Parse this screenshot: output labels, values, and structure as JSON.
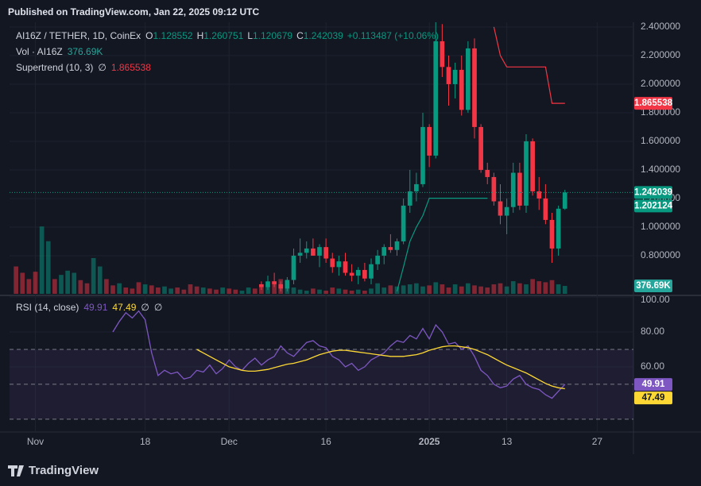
{
  "header": {
    "published": "Published on TradingView.com, Jan 22, 2025 09:12 UTC"
  },
  "footer": {
    "brand": "TradingView"
  },
  "chart_data": {
    "type": "candlestick",
    "title": "AI16Z / TETHER, 1D, CoinEx",
    "ohlc_names": [
      "O",
      "H",
      "L",
      "C"
    ],
    "change_label": "+0.113487 (+10.06%)",
    "up_color": "#089981",
    "down_color": "#f23645",
    "grid": true,
    "x": [
      "2024-10-29",
      "2024-10-30",
      "2024-10-31",
      "2024-11-01",
      "2024-11-02",
      "2024-11-03",
      "2024-11-04",
      "2024-11-05",
      "2024-11-06",
      "2024-11-07",
      "2024-11-08",
      "2024-11-09",
      "2024-11-10",
      "2024-11-11",
      "2024-11-12",
      "2024-11-13",
      "2024-11-14",
      "2024-11-15",
      "2024-11-16",
      "2024-11-17",
      "2024-11-18",
      "2024-11-19",
      "2024-11-20",
      "2024-11-21",
      "2024-11-22",
      "2024-11-23",
      "2024-11-24",
      "2024-11-25",
      "2024-11-26",
      "2024-11-27",
      "2024-11-28",
      "2024-11-29",
      "2024-11-30",
      "2024-12-01",
      "2024-12-02",
      "2024-12-03",
      "2024-12-04",
      "2024-12-05",
      "2024-12-06",
      "2024-12-07",
      "2024-12-08",
      "2024-12-09",
      "2024-12-10",
      "2024-12-11",
      "2024-12-12",
      "2024-12-13",
      "2024-12-14",
      "2024-12-15",
      "2024-12-16",
      "2024-12-17",
      "2024-12-18",
      "2024-12-19",
      "2024-12-20",
      "2024-12-21",
      "2024-12-22",
      "2024-12-23",
      "2024-12-24",
      "2024-12-25",
      "2024-12-26",
      "2024-12-27",
      "2024-12-28",
      "2024-12-29",
      "2024-12-30",
      "2024-12-31",
      "2025-01-01",
      "2025-01-02",
      "2025-01-03",
      "2025-01-04",
      "2025-01-05",
      "2025-01-06",
      "2025-01-07",
      "2025-01-08",
      "2025-01-09",
      "2025-01-10",
      "2025-01-11",
      "2025-01-12",
      "2025-01-13",
      "2025-01-14",
      "2025-01-15",
      "2025-01-16",
      "2025-01-17",
      "2025-01-18",
      "2025-01-19",
      "2025-01-20",
      "2025-01-21",
      "2025-01-22"
    ],
    "xlim": [
      "2024-10-28",
      "2025-02-01"
    ],
    "xticks": [
      {
        "value": "2024-11-01",
        "label": "Nov"
      },
      {
        "value": "2024-11-18",
        "label": "18"
      },
      {
        "value": "2024-12-01",
        "label": "Dec"
      },
      {
        "value": "2024-12-16",
        "label": "16"
      },
      {
        "value": "2025-01-01",
        "label": "2025"
      },
      {
        "value": "2025-01-13",
        "label": "13"
      },
      {
        "value": "2025-01-27",
        "label": "27"
      }
    ],
    "open": [
      null,
      null,
      null,
      null,
      null,
      null,
      null,
      null,
      null,
      null,
      null,
      null,
      null,
      null,
      null,
      null,
      null,
      null,
      null,
      null,
      null,
      null,
      null,
      null,
      null,
      null,
      null,
      null,
      null,
      null,
      null,
      null,
      null,
      null,
      null,
      null,
      null,
      null,
      0.6,
      0.58,
      0.62,
      0.6,
      0.57,
      0.63,
      0.8,
      0.82,
      0.85,
      0.8,
      0.86,
      0.78,
      0.72,
      0.76,
      0.68,
      0.66,
      0.7,
      0.64,
      0.74,
      0.8,
      0.86,
      0.84,
      0.9,
      1.15,
      1.25,
      1.3,
      1.7,
      1.5,
      2.3,
      2.12,
      2.0,
      2.1,
      1.82,
      2.25,
      1.7,
      1.4,
      1.35,
      1.18,
      1.08,
      1.14,
      1.38,
      1.15,
      1.6,
      1.25,
      1.2,
      1.05,
      0.85,
      1.128552
    ],
    "high": [
      null,
      null,
      null,
      null,
      null,
      null,
      null,
      null,
      null,
      null,
      null,
      null,
      null,
      null,
      null,
      null,
      null,
      null,
      null,
      null,
      null,
      null,
      null,
      null,
      null,
      null,
      null,
      null,
      null,
      null,
      null,
      null,
      null,
      null,
      null,
      null,
      null,
      null,
      0.62,
      0.66,
      0.68,
      0.62,
      0.65,
      0.85,
      0.92,
      0.9,
      0.92,
      0.88,
      0.92,
      0.82,
      0.8,
      0.82,
      0.74,
      0.72,
      0.75,
      0.78,
      0.84,
      0.88,
      0.95,
      0.92,
      1.2,
      1.4,
      1.38,
      1.8,
      1.72,
      2.45,
      2.42,
      2.2,
      2.15,
      2.2,
      2.3,
      2.32,
      1.72,
      1.45,
      1.38,
      1.3,
      1.2,
      1.45,
      1.45,
      1.65,
      1.62,
      1.35,
      1.3,
      1.1,
      1.15,
      1.260751
    ],
    "low": [
      null,
      null,
      null,
      null,
      null,
      null,
      null,
      null,
      null,
      null,
      null,
      null,
      null,
      null,
      null,
      null,
      null,
      null,
      null,
      null,
      null,
      null,
      null,
      null,
      null,
      null,
      null,
      null,
      null,
      null,
      null,
      null,
      null,
      null,
      null,
      null,
      null,
      null,
      0.56,
      0.56,
      0.58,
      0.55,
      0.55,
      0.6,
      0.75,
      0.78,
      0.8,
      0.72,
      0.75,
      0.68,
      0.66,
      0.66,
      0.62,
      0.6,
      0.62,
      0.6,
      0.7,
      0.74,
      0.82,
      0.8,
      0.88,
      1.1,
      1.18,
      1.28,
      1.42,
      1.48,
      2.05,
      1.85,
      1.9,
      1.78,
      1.8,
      1.62,
      1.38,
      1.3,
      1.15,
      1.02,
      0.95,
      1.1,
      1.12,
      1.1,
      1.22,
      1.12,
      1.02,
      0.75,
      0.8,
      1.120679
    ],
    "close": [
      null,
      null,
      null,
      null,
      null,
      null,
      null,
      null,
      null,
      null,
      null,
      null,
      null,
      null,
      null,
      null,
      null,
      null,
      null,
      null,
      null,
      null,
      null,
      null,
      null,
      null,
      null,
      null,
      null,
      null,
      null,
      null,
      null,
      null,
      null,
      null,
      null,
      null,
      0.58,
      0.62,
      0.6,
      0.57,
      0.63,
      0.8,
      0.82,
      0.85,
      0.8,
      0.86,
      0.78,
      0.72,
      0.76,
      0.68,
      0.66,
      0.7,
      0.64,
      0.74,
      0.8,
      0.86,
      0.84,
      0.9,
      1.15,
      1.25,
      1.3,
      1.7,
      1.5,
      2.3,
      2.12,
      2.0,
      2.1,
      1.82,
      2.25,
      1.7,
      1.4,
      1.35,
      1.18,
      1.08,
      1.14,
      1.38,
      1.15,
      1.6,
      1.25,
      1.2,
      1.05,
      0.85,
      1.128552,
      1.242039
    ],
    "ylim": [
      0.533,
      2.433
    ],
    "yticks": [
      {
        "value": 0.8,
        "label": "0.800000"
      },
      {
        "value": 1.0,
        "label": "1.000000"
      },
      {
        "value": 1.2,
        "label": "1.200000"
      },
      {
        "value": 1.4,
        "label": "1.400000"
      },
      {
        "value": 1.6,
        "label": "1.600000"
      },
      {
        "value": 1.8,
        "label": "1.800000"
      },
      {
        "value": 2.0,
        "label": "2.000000"
      },
      {
        "value": 2.2,
        "label": "2.200000"
      },
      {
        "value": 2.4,
        "label": "2.400000"
      }
    ],
    "volume": {
      "name": "Vol · AI16Z",
      "last_label": "376.69K",
      "ylim": [
        0,
        4000
      ],
      "color": "#26a69a",
      "values": [
        1300,
        1000,
        700,
        1050,
        3200,
        2500,
        700,
        900,
        1100,
        1000,
        650,
        500,
        1700,
        1300,
        700,
        400,
        500,
        300,
        250,
        550,
        450,
        400,
        300,
        350,
        250,
        300,
        200,
        450,
        350,
        300,
        250,
        200,
        300,
        250,
        200,
        150,
        300,
        250,
        450,
        350,
        600,
        700,
        550,
        300,
        200,
        150,
        250,
        200,
        150,
        300,
        250,
        200,
        150,
        200,
        150,
        250,
        500,
        300,
        400,
        350,
        400,
        450,
        500,
        350,
        400,
        550,
        450,
        300,
        450,
        350,
        500,
        400,
        350,
        300,
        450,
        500,
        350,
        600,
        500,
        450,
        700,
        600,
        550,
        650,
        450,
        376.69
      ],
      "rising": [
        false,
        false,
        false,
        false,
        true,
        true,
        false,
        true,
        true,
        true,
        false,
        false,
        true,
        true,
        false,
        false,
        true,
        false,
        false,
        false,
        true,
        false,
        false,
        true,
        true,
        false,
        false,
        false,
        false,
        true,
        false,
        false,
        true,
        false,
        false,
        true,
        true,
        false,
        false,
        true,
        false,
        false,
        true,
        true,
        true,
        true,
        false,
        true,
        false,
        false,
        true,
        false,
        false,
        true,
        false,
        true,
        true,
        true,
        false,
        true,
        true,
        true,
        true,
        true,
        false,
        true,
        false,
        false,
        true,
        false,
        true,
        false,
        false,
        false,
        false,
        false,
        true,
        true,
        false,
        true,
        false,
        false,
        false,
        false,
        true,
        true
      ]
    },
    "supertrend": {
      "name": "Supertrend (10, 3)",
      "empty": "∅",
      "up_color": "#089981",
      "down_color": "#f23645",
      "up": [
        null,
        null,
        null,
        null,
        null,
        null,
        null,
        null,
        null,
        null,
        null,
        null,
        null,
        null,
        null,
        null,
        null,
        null,
        null,
        null,
        null,
        null,
        null,
        null,
        null,
        null,
        null,
        null,
        null,
        null,
        null,
        null,
        null,
        null,
        null,
        null,
        null,
        null,
        null,
        null,
        null,
        null,
        null,
        null,
        null,
        null,
        null,
        null,
        null,
        null,
        null,
        null,
        null,
        null,
        null,
        null,
        null,
        null,
        null,
        0.55,
        0.72,
        0.9,
        1.0,
        1.08,
        1.202124,
        1.202124,
        1.202124,
        1.202124,
        1.202124,
        1.202124,
        1.202124,
        1.202124,
        1.202124,
        1.202124,
        null,
        null,
        null,
        null,
        null,
        null,
        null,
        null,
        null,
        null,
        null,
        null
      ],
      "down": [
        null,
        null,
        null,
        null,
        null,
        null,
        null,
        null,
        null,
        null,
        null,
        null,
        null,
        null,
        null,
        null,
        null,
        null,
        null,
        null,
        null,
        null,
        null,
        null,
        null,
        null,
        null,
        null,
        null,
        null,
        null,
        null,
        null,
        null,
        null,
        null,
        null,
        null,
        null,
        null,
        null,
        null,
        null,
        null,
        null,
        null,
        null,
        null,
        null,
        null,
        null,
        null,
        null,
        null,
        null,
        null,
        null,
        null,
        null,
        null,
        null,
        null,
        null,
        null,
        null,
        null,
        null,
        null,
        null,
        null,
        null,
        null,
        null,
        null,
        2.4,
        2.2,
        2.12,
        2.12,
        2.12,
        2.12,
        2.12,
        2.12,
        2.12,
        1.865538,
        1.865538,
        1.865538
      ]
    },
    "rsi": {
      "name": "RSI (14, close)",
      "empty": "∅",
      "color": "#7e57c2",
      "ma_color": "#fdd835",
      "band_color": "#787b86",
      "ylim": [
        24.5,
        100
      ],
      "yticks": [
        {
          "value": 60,
          "label": "60.00"
        },
        {
          "value": 80,
          "label": "80.00"
        },
        {
          "value": 100,
          "label": "100.00"
        }
      ],
      "bands": [
        70,
        50,
        30
      ],
      "values": [
        null,
        null,
        null,
        null,
        null,
        null,
        null,
        null,
        null,
        null,
        null,
        null,
        null,
        null,
        null,
        80,
        86,
        91,
        88,
        92,
        87,
        68,
        55,
        58,
        56,
        57,
        53,
        54,
        58,
        57,
        61,
        56,
        59,
        64,
        60,
        58,
        62,
        65,
        61,
        64,
        66,
        72,
        68,
        66,
        70,
        74,
        75,
        72,
        71,
        66,
        64,
        60,
        62,
        58,
        60,
        64,
        66,
        68,
        72,
        75,
        74,
        78,
        76,
        82,
        76,
        84,
        80,
        73,
        74,
        70,
        72,
        66,
        58,
        55,
        50,
        48,
        49,
        53,
        55,
        50,
        48,
        47,
        44,
        42,
        46,
        49.91
      ],
      "ma": [
        null,
        null,
        null,
        null,
        null,
        null,
        null,
        null,
        null,
        null,
        null,
        null,
        null,
        null,
        null,
        null,
        null,
        null,
        null,
        null,
        null,
        null,
        null,
        null,
        null,
        null,
        null,
        null,
        70,
        68,
        66,
        64,
        62,
        60,
        59,
        58,
        57.5,
        57.5,
        58,
        58.5,
        59.5,
        60.5,
        61.5,
        62,
        63,
        64,
        65.5,
        67,
        68,
        69,
        69.5,
        69.5,
        69,
        68.5,
        68,
        67.5,
        67,
        66.5,
        66,
        66,
        66,
        66.5,
        67,
        68,
        69.5,
        70.5,
        71.5,
        72,
        72,
        71.5,
        71,
        70,
        68.5,
        67,
        65,
        63,
        61,
        59.5,
        58,
        56.5,
        54.5,
        52.5,
        50.5,
        49,
        48,
        47.49
      ]
    }
  }
}
